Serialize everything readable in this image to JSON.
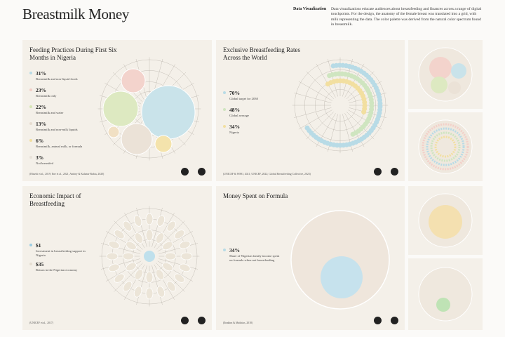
{
  "header": {
    "title": "Breastmilk Money",
    "section_label": "Data Visualization",
    "description": "Data visualizations educate audiences about breastfeeding and finances across a range of digital touchpoints. For the design, the anatomy of the female breast was translated into a grid, with milk representing the data. The color palette was derived from the natural color spectrum found in breastmilk."
  },
  "panels": [
    {
      "title": "Feeding Practices During First Six Months in Nigeria",
      "items": [
        {
          "value": "31%",
          "label": "Breastmilk and non-liquid foods"
        },
        {
          "value": "23%",
          "label": "Breastmilk only"
        },
        {
          "value": "22%",
          "label": "Breastmilk and water"
        },
        {
          "value": "13%",
          "label": "Breastmilk and non-milk liquids"
        },
        {
          "value": "6%",
          "label": "Breastmilk, animal milk, or formula"
        },
        {
          "value": "3%",
          "label": "Not breastfed"
        }
      ],
      "source": "(Ebuehi et al., 2019; Ene et al., 2021; Ambey & Kalama-Rubia, 2020)"
    },
    {
      "title": "Exclusive Breastfeeding Rates Across the World",
      "items": [
        {
          "value": "70%",
          "label": "Global target for 2030"
        },
        {
          "value": "48%",
          "label": "Global average"
        },
        {
          "value": "34%",
          "label": "Nigeria"
        }
      ],
      "source": "(UNICEF & WHO, 2021; UNICEF, 2022; Global Breastfeeding Collective, 2023)"
    },
    {
      "title": "Economic Impact of Breastfeeding",
      "items": [
        {
          "value": "$1",
          "label": "Investment in breastfeeding support in Nigeria"
        },
        {
          "value": "$35",
          "label": "Return in the Nigerian economy"
        }
      ],
      "source": "(UNICEF et al., 2017)"
    },
    {
      "title": "Money Spent on Formula",
      "items": [
        {
          "value": "34%",
          "label": "Share of Nigerian family income spent on formula when not breastfeeding"
        }
      ],
      "source": "(Ibrahim & Matthias, 2018)"
    }
  ]
}
